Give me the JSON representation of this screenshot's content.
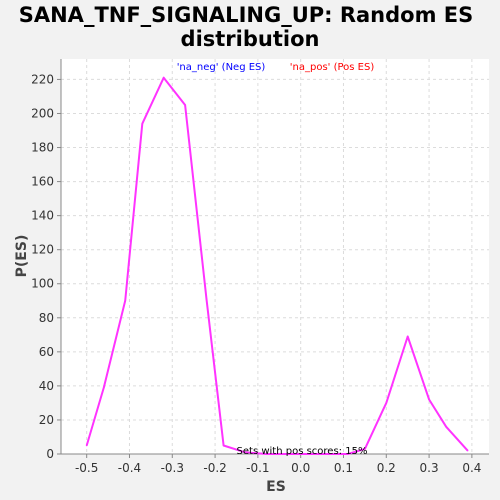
{
  "chart_data": {
    "type": "line",
    "title_line1": "SANA_TNF_SIGNALING_UP: Random ES",
    "title_line2": "distribution",
    "xlabel": "ES",
    "ylabel": "P(ES)",
    "xlim": [
      -0.56,
      0.44
    ],
    "ylim": [
      0,
      232
    ],
    "xticks": [
      -0.5,
      -0.4,
      -0.3,
      -0.2,
      -0.1,
      0.0,
      0.1,
      0.2,
      0.3,
      0.4
    ],
    "xtick_labels": [
      "-0.5",
      "-0.4",
      "-0.3",
      "-0.2",
      "-0.1",
      "0.0",
      "0.1",
      "0.2",
      "0.3",
      "0.4"
    ],
    "yticks": [
      0,
      20,
      40,
      60,
      80,
      100,
      120,
      140,
      160,
      180,
      200,
      220
    ],
    "ytick_labels": [
      "0",
      "20",
      "40",
      "60",
      "80",
      "100",
      "120",
      "140",
      "160",
      "180",
      "200",
      "220"
    ],
    "grid": true,
    "legend": [
      {
        "label": "'na_neg' (Neg ES)",
        "color": "#0000ff"
      },
      {
        "label": "'na_pos' (Pos ES)",
        "color": "#ff0000"
      }
    ],
    "annotation": "Sets with pos scores: 15%",
    "line_color": "#ff33ff",
    "series": [
      {
        "x": [
          -0.5,
          -0.46,
          -0.41,
          -0.37,
          -0.32,
          -0.27,
          -0.22,
          -0.18,
          -0.13,
          -0.08,
          -0.03,
          0.01,
          0.06,
          0.11,
          0.15,
          0.2,
          0.25,
          0.3,
          0.34,
          0.39
        ],
        "y": [
          5,
          39,
          90,
          194,
          221,
          205,
          91,
          5,
          1,
          0,
          0,
          0,
          0,
          0,
          3,
          30,
          69,
          32,
          16,
          2
        ]
      }
    ]
  }
}
